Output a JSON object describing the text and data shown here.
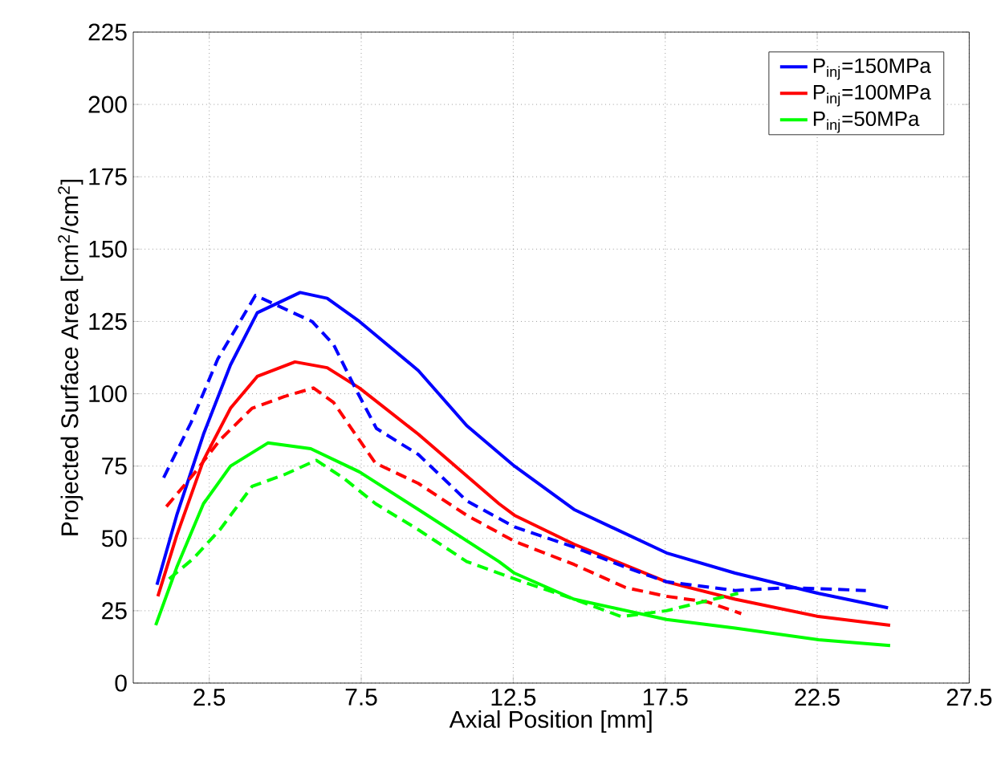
{
  "chart_data": {
    "type": "line",
    "xlabel": "Axial Position [mm]",
    "ylabel": "Projected Surface Area [cm$^{2}$/cm$^{2}$]",
    "xlim": [
      0,
      27.5
    ],
    "ylim": [
      0,
      225
    ],
    "xticks": [
      2.5,
      7.5,
      12.5,
      17.5,
      22.5,
      27.5
    ],
    "yticks": [
      0,
      25,
      50,
      75,
      100,
      125,
      150,
      175,
      200,
      225
    ],
    "grid": true,
    "legend": "top right",
    "series": [
      {
        "name": "P$_{inj}$=150MPa",
        "color": "#0000ff",
        "line_style": "solid",
        "x": [
          0.78,
          1.43,
          2.31,
          3.2,
          4.08,
          5.49,
          6.38,
          7.44,
          9.38,
          10.97,
          12.54,
          14.5,
          17.54,
          19.8,
          22.54,
          24.83
        ],
        "values": [
          34,
          58,
          86,
          110,
          128,
          135,
          133,
          125,
          108,
          89,
          75,
          60,
          45,
          38,
          31,
          26
        ]
      },
      {
        "name": "P$_{inj}$=100MPa",
        "color": "#ff0000",
        "line_style": "solid",
        "x": [
          0.81,
          1.43,
          2.31,
          3.2,
          4.08,
          5.32,
          6.38,
          7.44,
          9.38,
          12.03,
          12.54,
          14.5,
          17.54,
          19.8,
          22.54,
          24.9
        ],
        "values": [
          30,
          51,
          77,
          95,
          106,
          111,
          109,
          102,
          86,
          62,
          58,
          48,
          35,
          29,
          23,
          20
        ]
      },
      {
        "name": "P$_{inj}$=50MPa",
        "color": "#00ff00",
        "line_style": "solid",
        "x": [
          0.74,
          1.43,
          2.31,
          3.2,
          4.43,
          5.84,
          7.44,
          9.38,
          12.03,
          12.54,
          14.5,
          17.54,
          19.8,
          22.54,
          24.9
        ],
        "values": [
          20,
          40,
          62,
          75,
          83,
          81,
          73,
          60,
          42,
          38,
          29,
          22,
          19,
          15,
          13
        ]
      },
      {
        "color": "#0000ff",
        "line_style": "dashed",
        "x": [
          1.0,
          1.9,
          2.78,
          4.02,
          4.64,
          5.88,
          6.59,
          7.3,
          8.0,
          9.38,
          10.97,
          12.54,
          14.5,
          16.2,
          17.54,
          19.8,
          21.6,
          24.1
        ],
        "values": [
          71,
          90,
          112,
          134,
          131,
          125,
          117,
          102,
          88,
          79,
          63,
          54,
          47,
          40,
          35,
          32,
          33,
          32
        ]
      },
      {
        "color": "#ff0000",
        "line_style": "dashed",
        "x": [
          1.09,
          1.97,
          2.85,
          3.91,
          4.96,
          5.93,
          6.59,
          7.44,
          7.97,
          9.38,
          10.97,
          12.54,
          14.5,
          16.2,
          17.54,
          18.9,
          20.0
        ],
        "values": [
          61,
          72,
          84,
          95,
          99,
          102,
          97,
          84,
          76,
          69,
          58,
          49,
          41,
          33,
          30,
          28,
          24
        ]
      },
      {
        "color": "#00ff00",
        "line_style": "dashed",
        "x": [
          1.18,
          1.97,
          2.85,
          3.91,
          4.96,
          6.02,
          6.9,
          7.97,
          9.38,
          10.97,
          12.54,
          14.5,
          16.05,
          17.54,
          18.7,
          19.9
        ],
        "values": [
          36,
          43,
          53,
          68,
          72,
          77,
          71,
          62,
          53,
          42,
          36,
          29,
          23,
          25,
          28,
          31
        ]
      }
    ]
  }
}
